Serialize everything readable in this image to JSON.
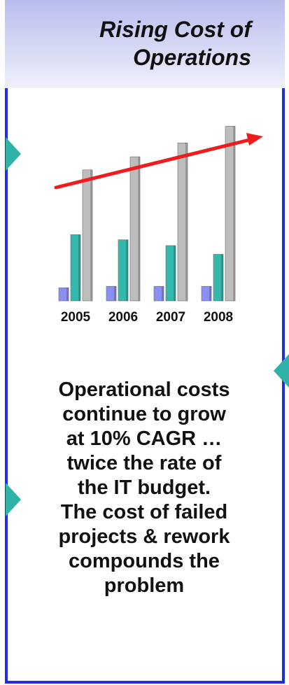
{
  "slide": {
    "title": "Rising Cost of\nOperations",
    "caption": "Operational costs\ncontinue to grow\nat 10% CAGR …\ntwice the rate of\nthe IT budget.\nThe cost of failed\nprojects & rework\ncompounds the\nproblem"
  },
  "colors": {
    "frame": "#1f2fe0",
    "series_small": "#8a90f0",
    "series_mid": "#33b8ac",
    "series_total": "#bdbdbd",
    "trend_arrow": "#ee1c1c"
  },
  "chart_data": {
    "type": "bar",
    "categories": [
      "2005",
      "2006",
      "2007",
      "2008"
    ],
    "series": [
      {
        "values": [
          18,
          20,
          20,
          20
        ]
      },
      {
        "values": [
          91,
          84,
          76,
          64
        ]
      },
      {
        "values": [
          180,
          198,
          217,
          240
        ]
      }
    ],
    "ylim": [
      0,
      250
    ],
    "trend_arrow": true,
    "grid": false,
    "legend": "none"
  }
}
